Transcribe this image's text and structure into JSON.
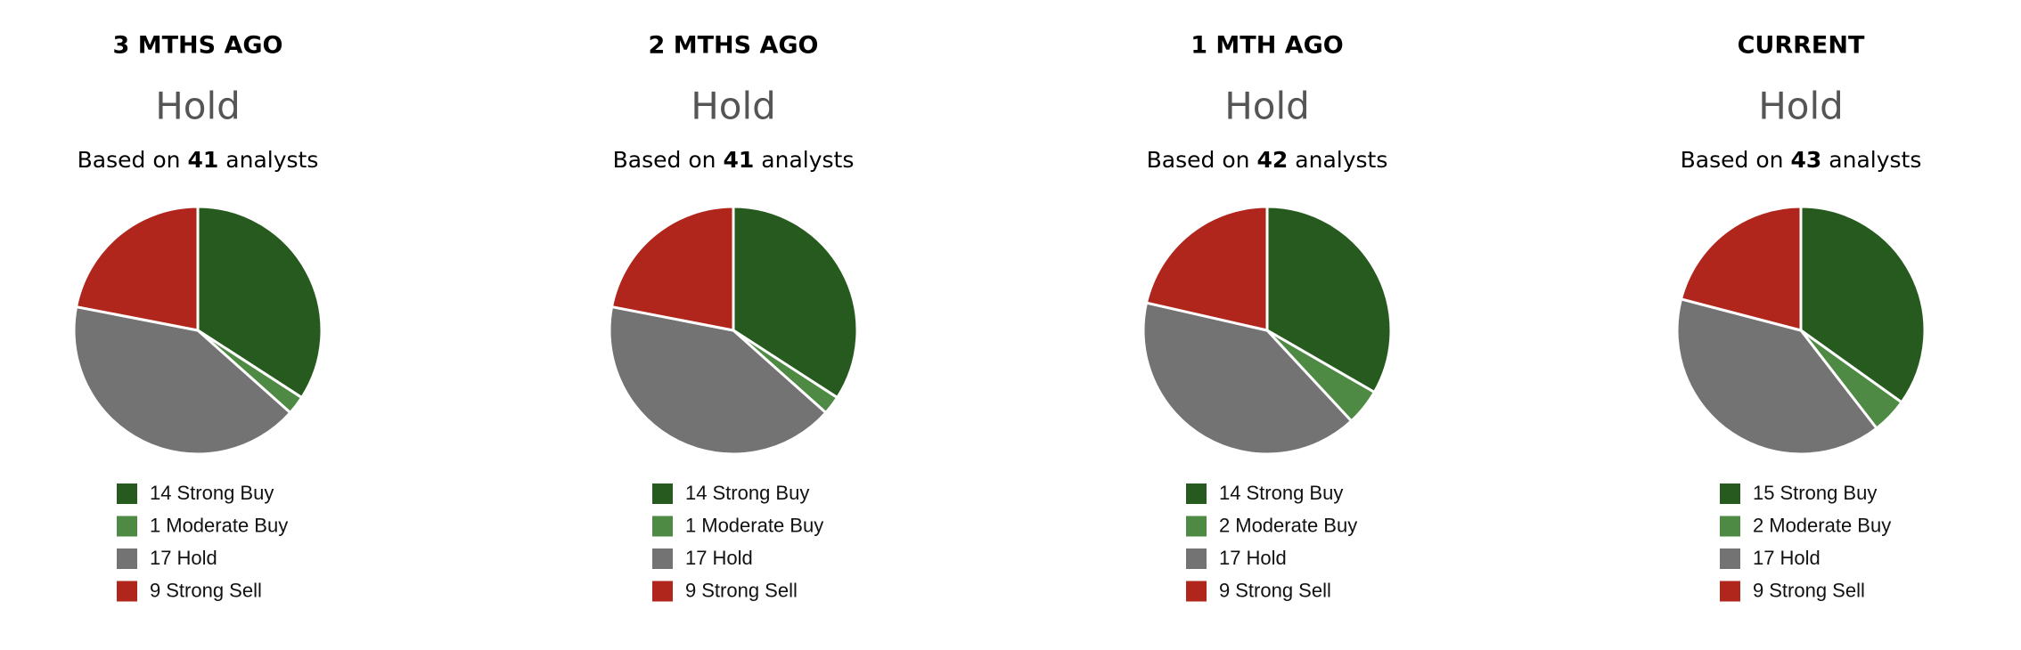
{
  "chart_data": [
    {
      "type": "pie",
      "title": "3 MTHS AGO",
      "rating": "Hold",
      "subtitle_prefix": "Based on",
      "analyst_count": 41,
      "subtitle_suffix": "analysts",
      "categories": [
        "Strong Buy",
        "Moderate Buy",
        "Hold",
        "Strong Sell"
      ],
      "values": [
        14,
        1,
        17,
        9
      ],
      "colors": [
        "#275a1f",
        "#4f8a45",
        "#737373",
        "#b1261c"
      ]
    },
    {
      "type": "pie",
      "title": "2 MTHS AGO",
      "rating": "Hold",
      "subtitle_prefix": "Based on",
      "analyst_count": 41,
      "subtitle_suffix": "analysts",
      "categories": [
        "Strong Buy",
        "Moderate Buy",
        "Hold",
        "Strong Sell"
      ],
      "values": [
        14,
        1,
        17,
        9
      ],
      "colors": [
        "#275a1f",
        "#4f8a45",
        "#737373",
        "#b1261c"
      ]
    },
    {
      "type": "pie",
      "title": "1 MTH AGO",
      "rating": "Hold",
      "subtitle_prefix": "Based on",
      "analyst_count": 42,
      "subtitle_suffix": "analysts",
      "categories": [
        "Strong Buy",
        "Moderate Buy",
        "Hold",
        "Strong Sell"
      ],
      "values": [
        14,
        2,
        17,
        9
      ],
      "colors": [
        "#275a1f",
        "#4f8a45",
        "#737373",
        "#b1261c"
      ]
    },
    {
      "type": "pie",
      "title": "CURRENT",
      "rating": "Hold",
      "subtitle_prefix": "Based on",
      "analyst_count": 43,
      "subtitle_suffix": "analysts",
      "categories": [
        "Strong Buy",
        "Moderate Buy",
        "Hold",
        "Strong Sell"
      ],
      "values": [
        15,
        2,
        17,
        9
      ],
      "colors": [
        "#275a1f",
        "#4f8a45",
        "#737373",
        "#b1261c"
      ]
    }
  ]
}
